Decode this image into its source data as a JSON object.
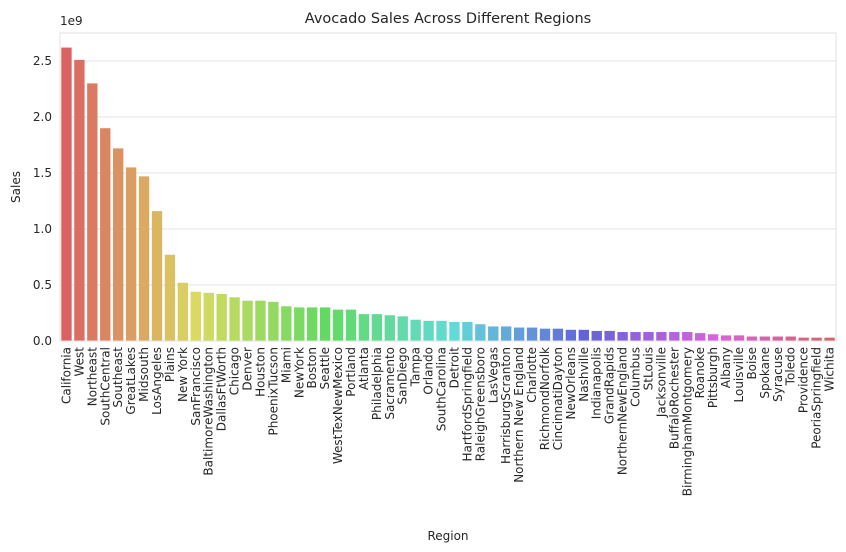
{
  "chart_data": {
    "type": "bar",
    "title": "Avocado Sales Across Different Regions",
    "xlabel": "Region",
    "ylabel": "Sales",
    "y_offset_label": "1e9",
    "ylim": [
      0,
      2.75
    ],
    "yticks": [
      "0.0",
      "0.5",
      "1.0",
      "1.5",
      "2.0",
      "2.5"
    ],
    "grid": "horizontal",
    "categories": [
      "California",
      "West",
      "Northeast",
      "SouthCentral",
      "Southeast",
      "GreatLakes",
      "Midsouth",
      "LosAngeles",
      "Plains",
      "New York",
      "SanFrancisco",
      "BaltimoreWashington",
      "DallasFtWorth",
      "Chicago",
      "Denver",
      "Houston",
      "PhoenixTucson",
      "Miami",
      "NewYork",
      "Boston",
      "Seattle",
      "WestTexNewMexico",
      "Portland",
      "Atlanta",
      "Philadelphia",
      "Sacramento",
      "SanDiego",
      "Tampa",
      "Orlando",
      "SouthCarolina",
      "Detroit",
      "HartfordSpringfield",
      "RaleighGreensboro",
      "LasVegas",
      "HarrisburgScranton",
      "Northern New England",
      "Charlotte",
      "RichmondNorfolk",
      "CincinnatiDayton",
      "NewOrleans",
      "Nashville",
      "Indianapolis",
      "GrandRapids",
      "NorthernNewEngland",
      "Columbus",
      "StLouis",
      "Jacksonville",
      "BuffaloRochester",
      "BirminghamMontgomery",
      "Roanoke",
      "Pittsburgh",
      "Albany",
      "Louisville",
      "Boise",
      "Spokane",
      "Syracuse",
      "Toledo",
      "Providence",
      "PeoriaSpringfield",
      "Wichita"
    ],
    "values": [
      2.62,
      2.51,
      2.3,
      1.9,
      1.72,
      1.55,
      1.47,
      1.16,
      0.77,
      0.52,
      0.44,
      0.43,
      0.42,
      0.39,
      0.36,
      0.36,
      0.35,
      0.31,
      0.3,
      0.3,
      0.3,
      0.28,
      0.28,
      0.24,
      0.24,
      0.23,
      0.22,
      0.19,
      0.18,
      0.18,
      0.17,
      0.17,
      0.15,
      0.13,
      0.13,
      0.12,
      0.12,
      0.11,
      0.11,
      0.1,
      0.1,
      0.09,
      0.09,
      0.08,
      0.08,
      0.08,
      0.08,
      0.08,
      0.08,
      0.07,
      0.06,
      0.05,
      0.05,
      0.04,
      0.04,
      0.04,
      0.04,
      0.03,
      0.03,
      0.03
    ]
  }
}
